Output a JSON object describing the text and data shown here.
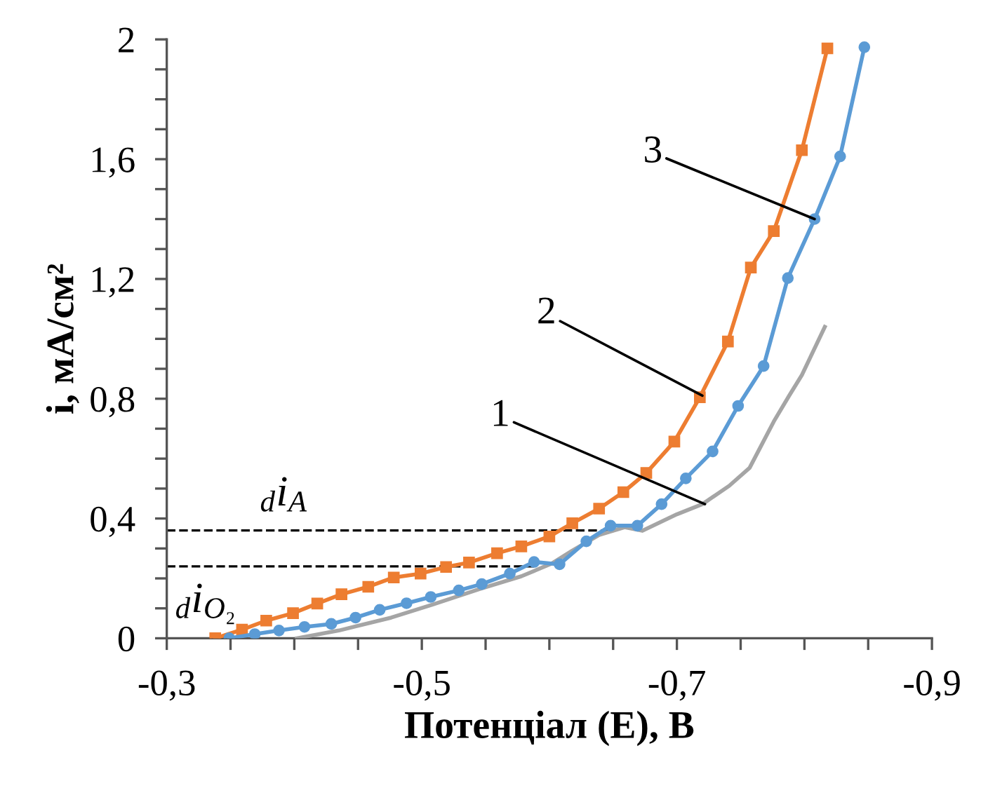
{
  "chart_data": {
    "type": "line",
    "xlabel": "Потенціал (E), В",
    "ylabel": "i, мА/см²",
    "xlim": [
      -0.3,
      -0.9
    ],
    "ylim": [
      0,
      2
    ],
    "xticks": [
      {
        "value": -0.3,
        "label": "-0,3"
      },
      {
        "value": -0.35,
        "label": null
      },
      {
        "value": -0.4,
        "label": null
      },
      {
        "value": -0.45,
        "label": null
      },
      {
        "value": -0.5,
        "label": "-0,5"
      },
      {
        "value": -0.55,
        "label": null
      },
      {
        "value": -0.6,
        "label": null
      },
      {
        "value": -0.65,
        "label": null
      },
      {
        "value": -0.7,
        "label": "-0,7"
      },
      {
        "value": -0.75,
        "label": null
      },
      {
        "value": -0.8,
        "label": null
      },
      {
        "value": -0.85,
        "label": null
      },
      {
        "value": -0.9,
        "label": "-0,9"
      }
    ],
    "yticks": [
      0,
      {
        "value": 0.1,
        "label": null
      },
      {
        "value": 0.2,
        "label": null
      },
      {
        "value": 0.3,
        "label": null
      },
      {
        "value": 0.4,
        "label": "0,4"
      },
      {
        "value": 0.5,
        "label": null
      },
      {
        "value": 0.6,
        "label": null
      },
      {
        "value": 0.7,
        "label": null
      },
      {
        "value": 0.8,
        "label": "0,8"
      },
      {
        "value": 0.9,
        "label": null
      },
      {
        "value": 1.0,
        "label": null
      },
      {
        "value": 1.1,
        "label": null
      },
      {
        "value": 1.2,
        "label": "1,2"
      },
      {
        "value": 1.3,
        "label": null
      },
      {
        "value": 1.4,
        "label": null
      },
      {
        "value": 1.5,
        "label": null
      },
      {
        "value": 1.6,
        "label": "1,6"
      },
      {
        "value": 1.7,
        "label": null
      },
      {
        "value": 1.8,
        "label": null
      },
      {
        "value": 1.9,
        "label": null
      },
      2
    ],
    "grid": false,
    "series": [
      {
        "color": "#a5a5a5",
        "marker": "none",
        "x": [
          -0.402,
          -0.435,
          -0.476,
          -0.508,
          -0.545,
          -0.578,
          -0.602,
          -0.618,
          -0.639,
          -0.659,
          -0.673,
          -0.7,
          -0.72,
          -0.741,
          -0.757,
          -0.776,
          -0.788,
          -0.798,
          -0.816
        ],
        "values": [
          0,
          0.026,
          0.069,
          0.112,
          0.164,
          0.207,
          0.25,
          0.293,
          0.345,
          0.371,
          0.359,
          0.414,
          0.448,
          0.509,
          0.569,
          0.724,
          0.81,
          0.879,
          1.04
        ]
      },
      {
        "color": "#ed7d31",
        "marker": "square",
        "x": [
          -0.338,
          -0.359,
          -0.378,
          -0.399,
          -0.418,
          -0.437,
          -0.458,
          -0.478,
          -0.499,
          -0.519,
          -0.537,
          -0.559,
          -0.578,
          -0.6,
          -0.618,
          -0.639,
          -0.658,
          -0.676,
          -0.698,
          -0.718,
          -0.74,
          -0.758,
          -0.776,
          -0.798,
          -0.818
        ],
        "values": [
          0,
          0.029,
          0.059,
          0.084,
          0.116,
          0.147,
          0.172,
          0.203,
          0.216,
          0.238,
          0.253,
          0.284,
          0.307,
          0.34,
          0.384,
          0.433,
          0.488,
          0.552,
          0.657,
          0.805,
          0.991,
          1.238,
          1.36,
          1.63,
          1.97
        ]
      },
      {
        "color": "#5b9bd5",
        "marker": "circle",
        "x": [
          -0.349,
          -0.369,
          -0.388,
          -0.408,
          -0.429,
          -0.448,
          -0.467,
          -0.488,
          -0.507,
          -0.529,
          -0.547,
          -0.569,
          -0.588,
          -0.608,
          -0.629,
          -0.648,
          -0.669,
          -0.688,
          -0.707,
          -0.728,
          -0.748,
          -0.768,
          -0.787,
          -0.808,
          -0.828,
          -0.847
        ],
        "values": [
          0,
          0.014,
          0.026,
          0.038,
          0.048,
          0.069,
          0.095,
          0.117,
          0.138,
          0.16,
          0.181,
          0.216,
          0.255,
          0.247,
          0.324,
          0.376,
          0.376,
          0.448,
          0.534,
          0.624,
          0.776,
          0.909,
          1.203,
          1.4,
          1.609,
          1.974
        ]
      }
    ],
    "ref_lines": [
      {
        "axis": "y",
        "value": 0.36,
        "label": "$_{d}$i$_{A}$",
        "color": "#000000",
        "line_style": "dashed"
      },
      {
        "axis": "y",
        "value": 0.24,
        "label": "$_{d}$i$_{O₂}$",
        "color": "#000000",
        "line_style": "dashed"
      }
    ],
    "annotations": [
      {
        "text": "1",
        "x": -0.722,
        "y": 0.448
      },
      {
        "text": "2",
        "x": -0.72,
        "y": 0.81
      },
      {
        "text": "3",
        "x": -0.808,
        "y": 1.4
      }
    ]
  }
}
